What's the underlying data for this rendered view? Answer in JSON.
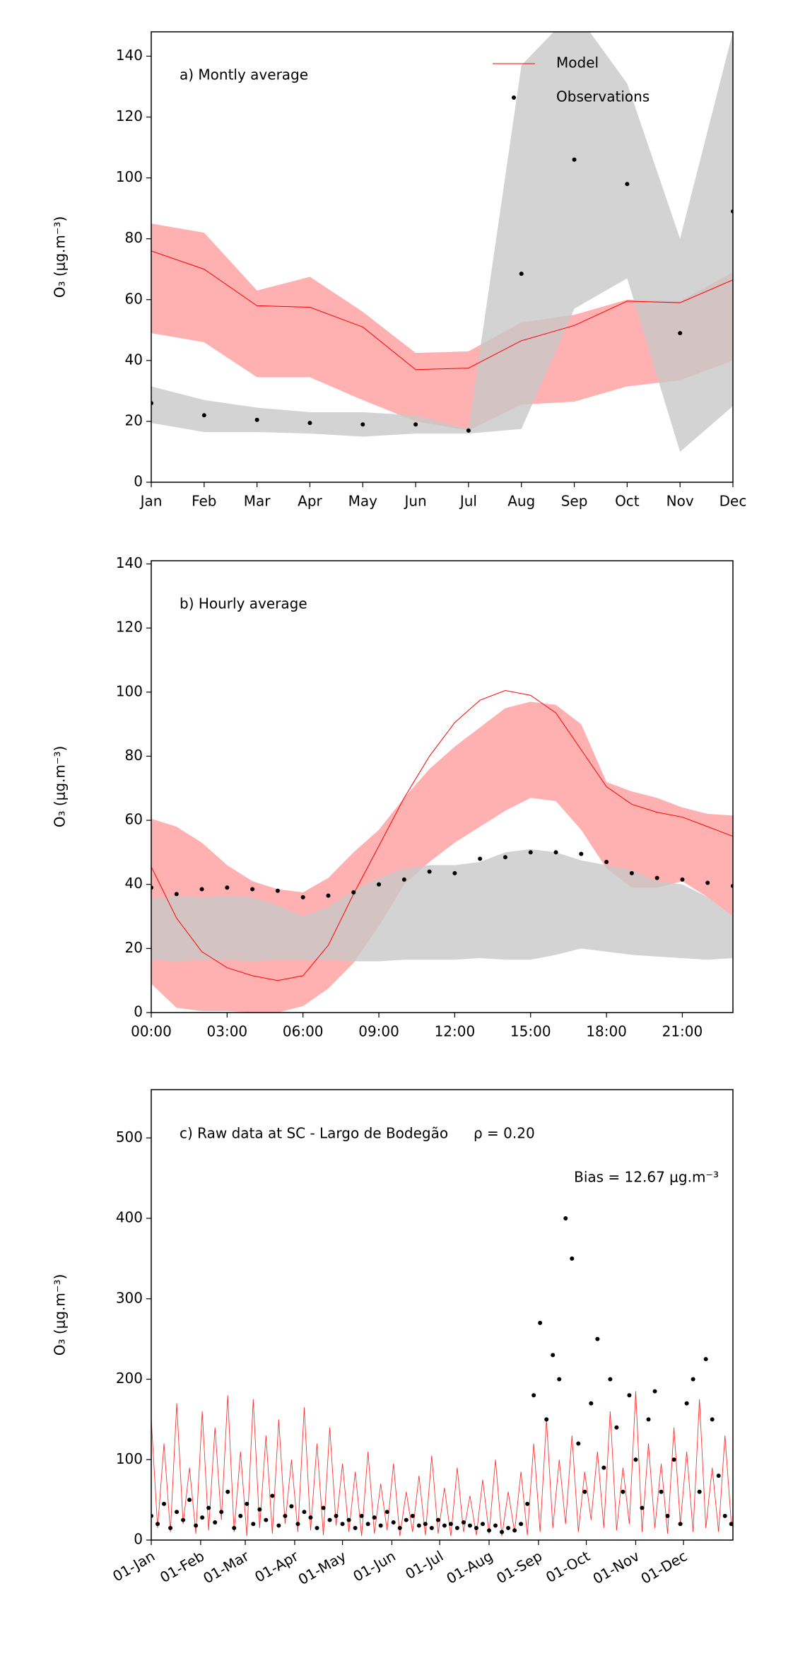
{
  "chart_data": [
    {
      "type": "line",
      "annotations": [
        "a) Montly average"
      ],
      "ylabel": "O₃ (μg.m⁻³)",
      "categories": [
        "Jan",
        "Feb",
        "Mar",
        "Apr",
        "May",
        "Jun",
        "Jul",
        "Aug",
        "Sep",
        "Oct",
        "Nov",
        "Dec"
      ],
      "ylim": [
        0,
        148
      ],
      "yticks": [
        0,
        20,
        40,
        60,
        80,
        100,
        120,
        140
      ],
      "legend": "upper right",
      "series": [
        {
          "name": "Model",
          "style": "line",
          "color": "#ff0000",
          "band_color": "#ff9c9c",
          "values": [
            76,
            70,
            58,
            57.5,
            51,
            37,
            37.5,
            46.5,
            51.5,
            59.5,
            59,
            66.5
          ],
          "lower": [
            49,
            46,
            34.5,
            34.5,
            27,
            20,
            17,
            25.5,
            26.5,
            31.5,
            33.5,
            40
          ],
          "upper": [
            85,
            82,
            63,
            67.5,
            56,
            42.5,
            43,
            52.5,
            55,
            60,
            59.5,
            69
          ]
        },
        {
          "name": "Observations",
          "style": "scatter",
          "color": "#000000",
          "band_color": "#c8c8c8",
          "values": [
            26,
            22,
            20.5,
            19.5,
            19,
            19,
            17,
            68.5,
            106,
            98,
            49,
            89
          ],
          "lower": [
            19.5,
            16.5,
            16.5,
            16,
            15,
            16,
            16,
            17.5,
            57,
            67,
            10,
            25
          ],
          "upper": [
            31.5,
            27,
            24.5,
            23,
            23,
            22,
            17.5,
            137,
            155,
            131,
            80,
            148
          ]
        }
      ]
    },
    {
      "type": "line",
      "annotations": [
        "b) Hourly average"
      ],
      "ylabel": "O₃ (μg.m⁻³)",
      "x": [
        0,
        1,
        2,
        3,
        4,
        5,
        6,
        7,
        8,
        9,
        10,
        11,
        12,
        13,
        14,
        15,
        16,
        17,
        18,
        19,
        20,
        21,
        22,
        23
      ],
      "xlim": [
        0,
        23
      ],
      "xticks": [
        {
          "value": 0,
          "label": "00:00"
        },
        {
          "value": 3,
          "label": "03:00"
        },
        {
          "value": 6,
          "label": "06:00"
        },
        {
          "value": 9,
          "label": "09:00"
        },
        {
          "value": 12,
          "label": "12:00"
        },
        {
          "value": 15,
          "label": "15:00"
        },
        {
          "value": 18,
          "label": "18:00"
        },
        {
          "value": 21,
          "label": "21:00"
        }
      ],
      "ylim": [
        0,
        141
      ],
      "yticks": [
        0,
        20,
        40,
        60,
        80,
        100,
        120,
        140
      ],
      "series": [
        {
          "style": "line",
          "color": "#ff0000",
          "band_color": "#ff9c9c",
          "values": [
            45.5,
            29.5,
            19,
            14,
            11.5,
            10,
            11.5,
            21,
            37,
            52,
            67,
            80,
            90.5,
            97.5,
            100.5,
            99,
            93.5,
            82,
            70.5,
            65,
            62.5,
            61,
            58,
            55
          ],
          "lower": [
            9,
            1.5,
            0.5,
            0.5,
            0,
            0,
            2,
            7.5,
            15.5,
            27,
            40,
            47,
            53,
            58,
            63,
            67,
            66,
            57,
            45,
            39,
            39,
            41,
            36,
            30
          ],
          "upper": [
            60.5,
            58,
            53,
            46,
            41,
            38.5,
            37.5,
            42,
            50,
            57,
            67,
            76,
            83,
            89,
            95,
            97,
            96,
            90,
            72,
            69,
            67,
            64,
            62,
            61.5
          ]
        },
        {
          "style": "scatter",
          "color": "#000000",
          "band_color": "#c8c8c8",
          "values": [
            39,
            37,
            38.5,
            39,
            38.5,
            38,
            36,
            36.5,
            37.5,
            40,
            41.5,
            44,
            43.5,
            48,
            48.5,
            50,
            50,
            49.5,
            47,
            43.5,
            42,
            41.5,
            40.5,
            39.5
          ],
          "lower": [
            16.5,
            16,
            16.5,
            16.5,
            16,
            16.5,
            16.5,
            16.5,
            16,
            16,
            16.5,
            16.5,
            16.5,
            17,
            16.5,
            16.5,
            18,
            20,
            19,
            18,
            17.5,
            17,
            16.5,
            17
          ],
          "upper": [
            35.5,
            36.5,
            36,
            36.5,
            36,
            33.5,
            30,
            33,
            38,
            42,
            45,
            46,
            46,
            47,
            50,
            51,
            50,
            47.5,
            46,
            44.5,
            41,
            40,
            36,
            30
          ]
        }
      ]
    },
    {
      "type": "line",
      "annotations": [
        "c) Raw data at SC - Largo de Bodegão",
        "ρ = 0.20",
        "Bias = 12.67 μg.m⁻³"
      ],
      "ylabel": "O₃ (μg.m⁻³)",
      "x": [
        0,
        4,
        8,
        12,
        16,
        20,
        24,
        28,
        32,
        36,
        40,
        44,
        48,
        52,
        56,
        60,
        64,
        68,
        72,
        76,
        80,
        84,
        88,
        92,
        96,
        100,
        104,
        108,
        112,
        116,
        120,
        124,
        128,
        132,
        136,
        140,
        144,
        148,
        152,
        156,
        160,
        164,
        168,
        172,
        176,
        180,
        184,
        188,
        192,
        196,
        200,
        204,
        208,
        212,
        216,
        220,
        224,
        228,
        232,
        236,
        240,
        244,
        248,
        252,
        256,
        260,
        264,
        268,
        272,
        276,
        280,
        284,
        288,
        292,
        296,
        300,
        304,
        308,
        312,
        316,
        320,
        324,
        328,
        332,
        336,
        340,
        344,
        348,
        352,
        356,
        360,
        364
      ],
      "xlim": [
        0,
        365
      ],
      "xticks": [
        {
          "value": 0,
          "label": "01-Jan"
        },
        {
          "value": 31,
          "label": "01-Feb"
        },
        {
          "value": 59,
          "label": "01-Mar"
        },
        {
          "value": 90,
          "label": "01-Apr"
        },
        {
          "value": 120,
          "label": "01-May"
        },
        {
          "value": 151,
          "label": "01-Jun"
        },
        {
          "value": 181,
          "label": "01-Jul"
        },
        {
          "value": 212,
          "label": "01-Aug"
        },
        {
          "value": 243,
          "label": "01-Sep"
        },
        {
          "value": 273,
          "label": "01-Oct"
        },
        {
          "value": 304,
          "label": "01-Nov"
        },
        {
          "value": 334,
          "label": "01-Dec"
        }
      ],
      "ylim": [
        0,
        560
      ],
      "yticks": [
        0,
        100,
        200,
        300,
        400,
        500
      ],
      "series": [
        {
          "style": "line",
          "color": "#ff0000",
          "values": [
            150,
            15,
            120,
            10,
            170,
            20,
            90,
            8,
            160,
            12,
            140,
            25,
            180,
            10,
            110,
            5,
            175,
            15,
            130,
            8,
            150,
            20,
            100,
            10,
            165,
            12,
            120,
            6,
            140,
            18,
            95,
            10,
            85,
            5,
            110,
            8,
            70,
            12,
            95,
            5,
            60,
            10,
            80,
            6,
            105,
            8,
            65,
            5,
            90,
            10,
            55,
            6,
            75,
            8,
            100,
            5,
            60,
            10,
            85,
            6,
            120,
            10,
            150,
            15,
            100,
            20,
            130,
            10,
            85,
            25,
            110,
            15,
            160,
            12,
            90,
            20,
            185,
            10,
            120,
            15,
            95,
            8,
            140,
            20,
            110,
            10,
            175,
            15,
            90,
            10,
            130,
            20
          ]
        },
        {
          "style": "scatter",
          "color": "#000000",
          "values": [
            30,
            20,
            45,
            15,
            35,
            25,
            50,
            18,
            28,
            40,
            22,
            35,
            60,
            15,
            30,
            45,
            20,
            38,
            25,
            55,
            18,
            30,
            42,
            20,
            35,
            28,
            15,
            40,
            25,
            30,
            20,
            25,
            15,
            30,
            20,
            28,
            18,
            35,
            22,
            15,
            25,
            30,
            18,
            20,
            15,
            25,
            18,
            20,
            15,
            22,
            18,
            15,
            20,
            12,
            18,
            10,
            15,
            12,
            20,
            45,
            180,
            270,
            150,
            230,
            200,
            400,
            350,
            120,
            60,
            170,
            250,
            90,
            200,
            140,
            60,
            180,
            100,
            40,
            150,
            185,
            60,
            30,
            100,
            20,
            170,
            200,
            60,
            225,
            150,
            80,
            30,
            20
          ]
        }
      ]
    }
  ]
}
